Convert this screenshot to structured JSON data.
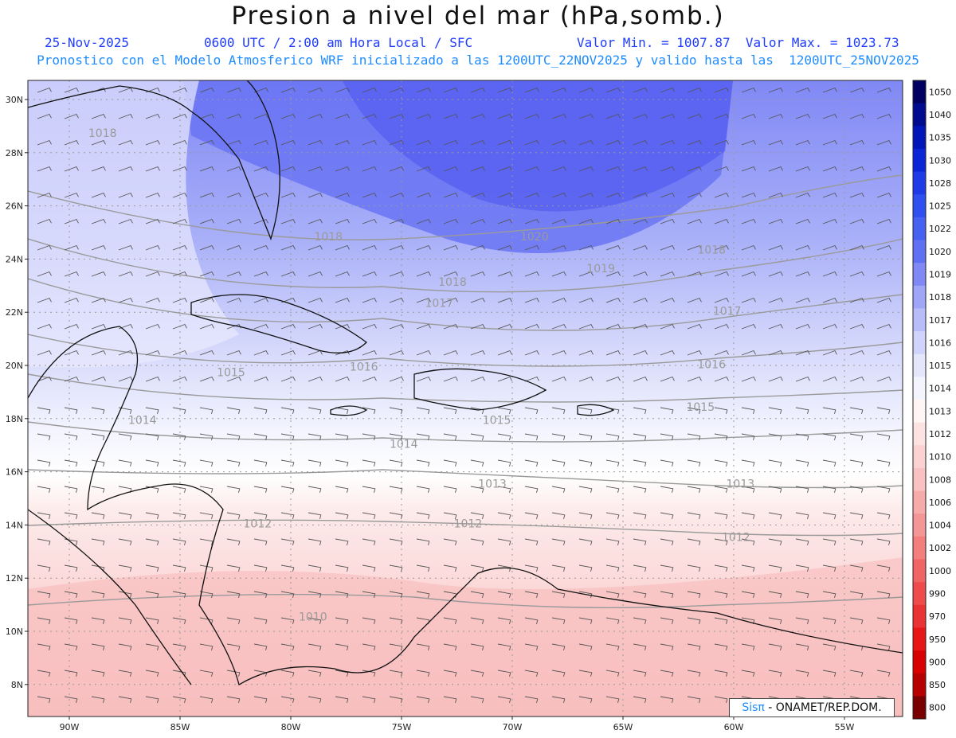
{
  "header": {
    "title": "Presion a nivel del mar (hPa,somb.)",
    "date": "25-Nov-2025",
    "time": "0600 UTC / 2:00 am Hora Local / SFC",
    "minmax": "Valor Min. = 1007.87  Valor Max. = 1023.73",
    "forecast": "Pronostico con el Modelo Atmosferico WRF inicializado a las 1200UTC_22NOV2025 y valido hasta las  1200UTC_25NOV2025"
  },
  "map": {
    "lat_labels": [
      "30N",
      "28N",
      "26N",
      "24N",
      "22N",
      "20N",
      "18N",
      "16N",
      "14N",
      "12N",
      "10N",
      "8N"
    ],
    "lat_values": [
      30,
      28,
      26,
      24,
      22,
      20,
      18,
      16,
      14,
      12,
      10,
      8
    ],
    "lon_labels": [
      "90W",
      "85W",
      "80W",
      "75W",
      "70W",
      "65W",
      "60W",
      "55W"
    ],
    "lon_values": [
      -90,
      -85,
      -80,
      -75,
      -70,
      -65,
      -60,
      -55
    ],
    "contour_labels": [
      {
        "text": "1018",
        "lon": -88.5,
        "lat": 28.6
      },
      {
        "text": "1020",
        "lon": -69.0,
        "lat": 24.7
      },
      {
        "text": "1018",
        "lon": -61.0,
        "lat": 24.2
      },
      {
        "text": "1019",
        "lon": -66.0,
        "lat": 23.5
      },
      {
        "text": "1018",
        "lon": -72.7,
        "lat": 23.0
      },
      {
        "text": "1017",
        "lon": -73.3,
        "lat": 22.2
      },
      {
        "text": "1017",
        "lon": -60.3,
        "lat": 21.9
      },
      {
        "text": "1016",
        "lon": -61.0,
        "lat": 19.9
      },
      {
        "text": "1016",
        "lon": -76.7,
        "lat": 19.8
      },
      {
        "text": "1015",
        "lon": -82.7,
        "lat": 19.6
      },
      {
        "text": "1015",
        "lon": -61.5,
        "lat": 18.3
      },
      {
        "text": "1015",
        "lon": -70.7,
        "lat": 17.8
      },
      {
        "text": "1014",
        "lon": -86.7,
        "lat": 17.8
      },
      {
        "text": "1014",
        "lon": -74.9,
        "lat": 16.9
      },
      {
        "text": "1013",
        "lon": -70.9,
        "lat": 15.4
      },
      {
        "text": "1013",
        "lon": -59.7,
        "lat": 15.4
      },
      {
        "text": "1012",
        "lon": -81.5,
        "lat": 13.9
      },
      {
        "text": "1012",
        "lon": -72.0,
        "lat": 13.9
      },
      {
        "text": "1012",
        "lon": -59.9,
        "lat": 13.4
      },
      {
        "text": "1010",
        "lon": -79.0,
        "lat": 10.4
      },
      {
        "text": "1018",
        "lon": -78.3,
        "lat": 24.7
      }
    ]
  },
  "colorbar": {
    "levels": [
      "1050",
      "1040",
      "1035",
      "1030",
      "1028",
      "1025",
      "1022",
      "1020",
      "1019",
      "1018",
      "1017",
      "1016",
      "1015",
      "1014",
      "1013",
      "1012",
      "1010",
      "1008",
      "1006",
      "1004",
      "1002",
      "1000",
      "990",
      "970",
      "950",
      "900",
      "850",
      "800"
    ],
    "colors": [
      "#000060",
      "#000b90",
      "#0016b8",
      "#0c25d6",
      "#1f3ae6",
      "#2f4ff0",
      "#4660f2",
      "#6070f3",
      "#8088f5",
      "#9fa6f7",
      "#b8bdf9",
      "#d0d3fb",
      "#e4e6fc",
      "#f3f4fe",
      "#fff5f5",
      "#fde2e2",
      "#fbd2d2",
      "#f9c1c1",
      "#f6aaaa",
      "#f49696",
      "#f27e7e",
      "#f06464",
      "#ee4c4c",
      "#ec3333",
      "#e81616",
      "#d80000",
      "#b80000",
      "#7a0000"
    ]
  },
  "credit": {
    "brand": "Sisπ",
    "org": "- ONAMET/REP.DOM."
  }
}
